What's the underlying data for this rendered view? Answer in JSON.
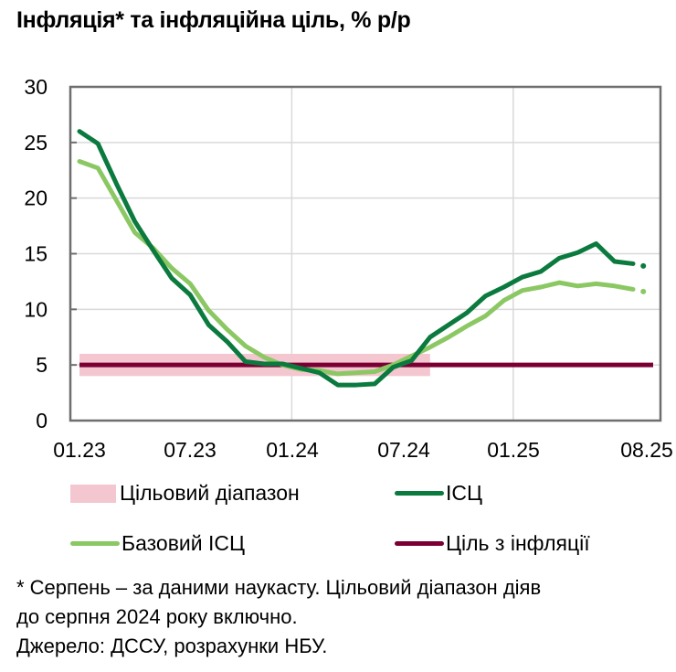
{
  "title": "Інфляція* та інфляційна ціль, % р/р",
  "legend": {
    "band": "Цільовий діапазон",
    "cpi": "ІСЦ",
    "core": "Базовий ІСЦ",
    "target": "Ціль з інфляції"
  },
  "notes": {
    "line1": "* Серпень – за даними наукасту. Цільовий діапазон діяв",
    "line2": "до серпня 2024 року включно.",
    "line3": "Джерело: ДССУ, розрахунки НБУ."
  },
  "colors": {
    "cpi": "#0B7A3E",
    "core": "#8BC864",
    "target": "#7A0034",
    "band": "#F4C6CF",
    "grid": "#D9D9D9",
    "axis": "#6E6E6E"
  },
  "chart_data": {
    "type": "line",
    "title": "Інфляція* та інфляційна ціль, % р/р",
    "xlabel": "",
    "ylabel": "% р/р",
    "ylim": [
      0,
      30
    ],
    "yticks": [
      0,
      5,
      10,
      15,
      20,
      25,
      30
    ],
    "xtick_labels": [
      "01.23",
      "07.23",
      "01.24",
      "07.24",
      "01.25",
      "08.25"
    ],
    "grid": true,
    "legend_position": "bottom",
    "x": [
      "01.23",
      "02.23",
      "03.23",
      "04.23",
      "05.23",
      "06.23",
      "07.23",
      "08.23",
      "09.23",
      "10.23",
      "11.23",
      "12.23",
      "01.24",
      "02.24",
      "03.24",
      "04.24",
      "05.24",
      "06.24",
      "07.24",
      "08.24",
      "09.24",
      "10.24",
      "11.24",
      "12.24",
      "01.25",
      "02.25",
      "03.25",
      "04.25",
      "05.25",
      "06.25",
      "07.25",
      "08.25"
    ],
    "series": [
      {
        "name": "ІСЦ",
        "values": [
          26.0,
          24.9,
          21.3,
          17.9,
          15.3,
          12.8,
          11.3,
          8.6,
          7.1,
          5.3,
          5.1,
          5.1,
          4.7,
          4.3,
          3.2,
          3.2,
          3.3,
          4.8,
          5.4,
          7.5,
          8.6,
          9.7,
          11.2,
          12.0,
          12.9,
          13.4,
          14.6,
          15.1,
          15.9,
          14.3,
          14.1,
          13.9
        ],
        "nowcast_last": true
      },
      {
        "name": "Базовий ІСЦ",
        "values": [
          23.3,
          22.7,
          19.8,
          16.9,
          15.5,
          13.7,
          12.3,
          9.9,
          8.2,
          6.7,
          5.7,
          5.0,
          4.6,
          4.5,
          4.2,
          4.3,
          4.4,
          5.0,
          5.8,
          6.6,
          7.5,
          8.5,
          9.4,
          10.8,
          11.7,
          12.0,
          12.4,
          12.1,
          12.3,
          12.1,
          11.8,
          11.6
        ],
        "nowcast_last": true
      },
      {
        "name": "Ціль з інфляції",
        "values": [
          5,
          5,
          5,
          5,
          5,
          5,
          5,
          5,
          5,
          5,
          5,
          5,
          5,
          5,
          5,
          5,
          5,
          5,
          5,
          5,
          5,
          5,
          5,
          5,
          5,
          5,
          5,
          5,
          5,
          5,
          5,
          5
        ]
      }
    ],
    "band": {
      "name": "Цільовий діапазон",
      "low": 4,
      "high": 6,
      "from": "01.23",
      "to": "08.24"
    }
  }
}
